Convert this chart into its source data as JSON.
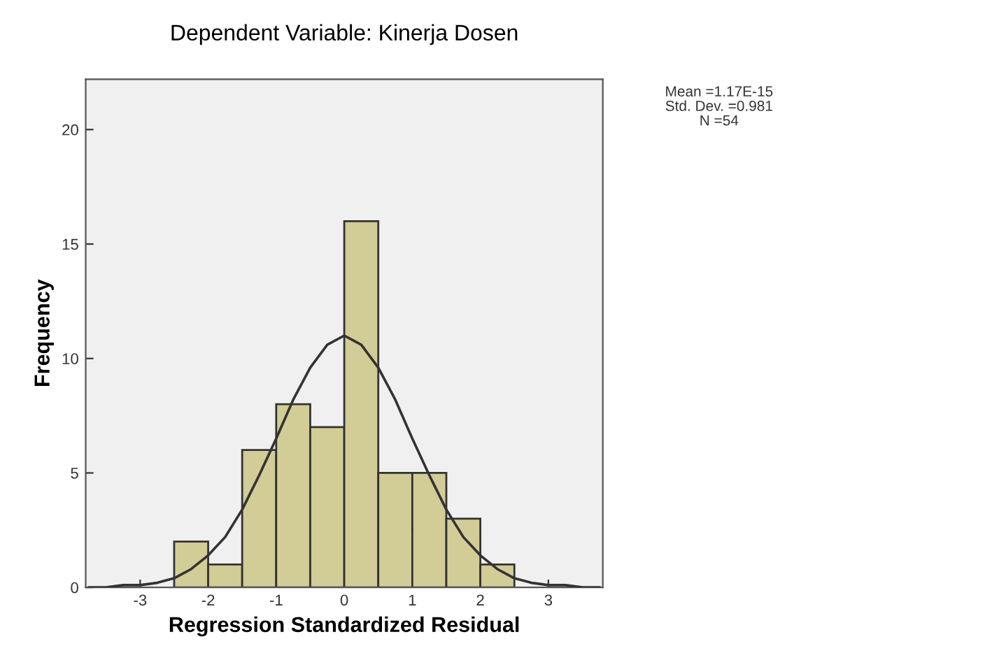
{
  "chart_data": {
    "type": "histogram",
    "title": "Dependent Variable: Kinerja Dosen",
    "xlabel": "Regression Standardized Residual",
    "ylabel": "Frequency",
    "bins": [
      -2.5,
      -2.0,
      -1.5,
      -1.0,
      -0.5,
      0.0,
      0.5,
      1.0,
      1.5,
      2.0,
      2.5
    ],
    "values": [
      2,
      1,
      6,
      8,
      7,
      16,
      5,
      5,
      3,
      1
    ],
    "color": "#d2cc96",
    "series": [
      {
        "type": "line",
        "color": "#333333",
        "x": [
          -3.75,
          -3.5,
          -3.25,
          -3.0,
          -2.75,
          -2.5,
          -2.25,
          -2.0,
          -1.75,
          -1.5,
          -1.25,
          -1.0,
          -0.75,
          -0.5,
          -0.25,
          0.0,
          0.25,
          0.5,
          0.75,
          1.0,
          1.25,
          1.5,
          1.75,
          2.0,
          2.25,
          2.5,
          2.75,
          3.0,
          3.25,
          3.5,
          3.75
        ],
        "values": [
          0.0,
          0.0,
          0.1,
          0.1,
          0.2,
          0.4,
          0.8,
          1.4,
          2.2,
          3.4,
          4.9,
          6.5,
          8.2,
          9.6,
          10.6,
          11.0,
          10.6,
          9.6,
          8.2,
          6.5,
          4.9,
          3.4,
          2.2,
          1.4,
          0.8,
          0.4,
          0.2,
          0.1,
          0.1,
          0.0,
          0.0
        ]
      }
    ],
    "xlim": [
      -3.8,
      3.8
    ],
    "xticks": [
      -3,
      -2,
      -1,
      0,
      1,
      2,
      3
    ],
    "ylim": [
      0,
      22.2
    ],
    "yticks": [
      0,
      5,
      10,
      15,
      20
    ],
    "grid": false,
    "annotations": [
      "Mean =1.17E-15",
      "Std. Dev. =0.981",
      "N =54"
    ]
  }
}
